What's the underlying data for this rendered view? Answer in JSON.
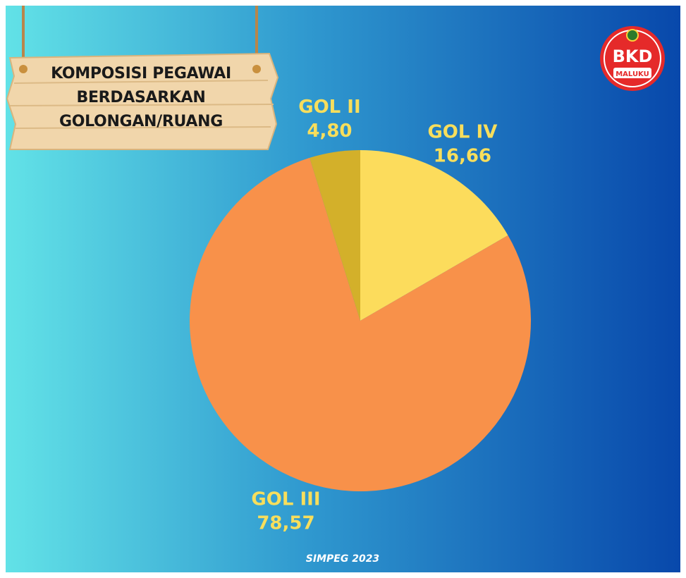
{
  "chart_data": {
    "type": "pie",
    "title": "KOMPOSISI PEGAWAI BERDASARKAN GOLONGAN/RUANG",
    "categories": [
      "GOL IV",
      "GOL III",
      "GOL II"
    ],
    "values": [
      16.66,
      78.57,
      4.8
    ],
    "value_labels": [
      "16,66",
      "78,57",
      "4,80"
    ],
    "colors": [
      "#fcdc5c",
      "#f8914a",
      "#d3b02a"
    ],
    "label_color": "#f7de5c",
    "footer": "SIMPEG 2023",
    "logo": {
      "text": "BKD",
      "subtext": "MALUKU"
    }
  }
}
